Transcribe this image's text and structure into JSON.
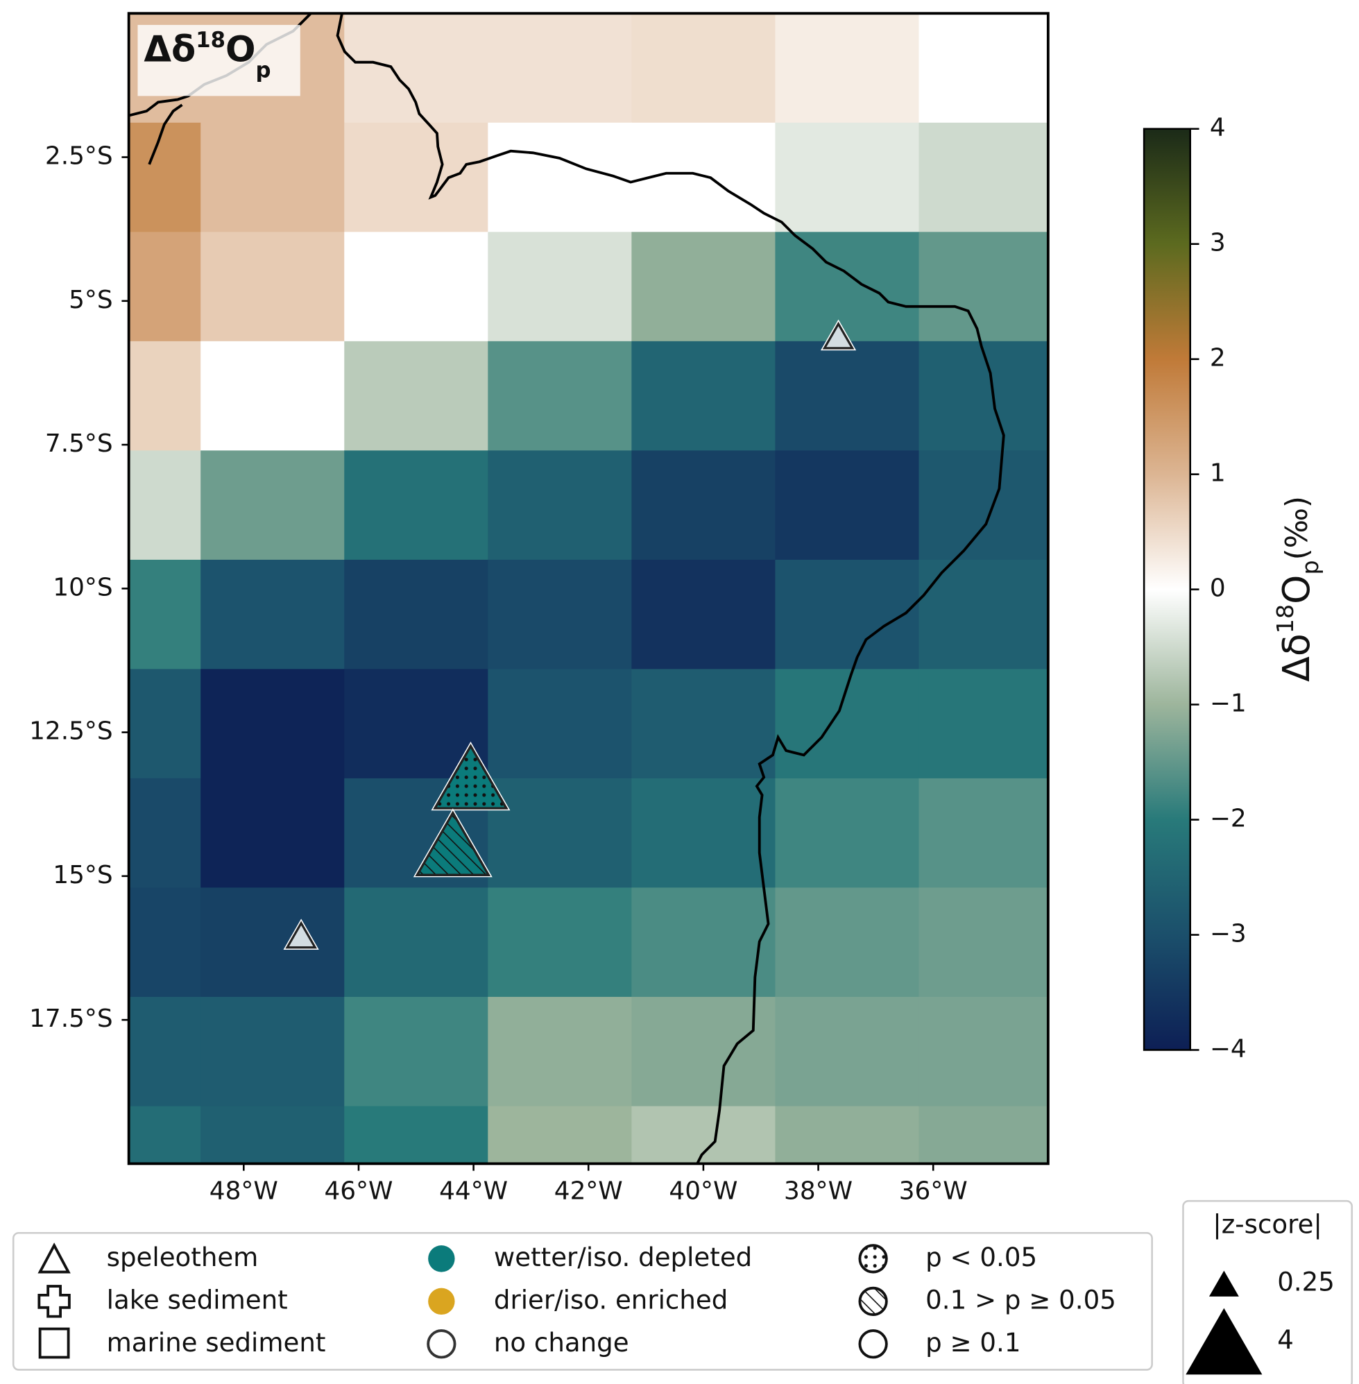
{
  "chart_data": {
    "type": "heatmap",
    "title": {
      "base": "Δδ",
      "sup": "18",
      "mid": "O",
      "sub": "p"
    },
    "xlim": [
      -50,
      -34
    ],
    "ylim": [
      -20,
      0
    ],
    "xticks": [
      {
        "value": -48,
        "label": "48°W"
      },
      {
        "value": -46,
        "label": "46°W"
      },
      {
        "value": -44,
        "label": "44°W"
      },
      {
        "value": -42,
        "label": "42°W"
      },
      {
        "value": -40,
        "label": "40°W"
      },
      {
        "value": -38,
        "label": "38°W"
      },
      {
        "value": -36,
        "label": "36°W"
      }
    ],
    "yticks": [
      {
        "value": -2.5,
        "label": "2.5°S"
      },
      {
        "value": -5,
        "label": "5°S"
      },
      {
        "value": -7.5,
        "label": "7.5°S"
      },
      {
        "value": -10,
        "label": "10°S"
      },
      {
        "value": -12.5,
        "label": "12.5°S"
      },
      {
        "value": -15,
        "label": "15°S"
      },
      {
        "value": -17.5,
        "label": "17.5°S"
      }
    ],
    "lon_edges": [
      -50,
      -48.75,
      -46.25,
      -43.75,
      -41.25,
      -38.75,
      -36.25,
      -34
    ],
    "lat_edges": [
      0,
      -1.9,
      -3.8,
      -5.7,
      -7.6,
      -9.5,
      -11.4,
      -13.3,
      -15.2,
      -17.1,
      -19.0,
      -20
    ],
    "values": [
      [
        0.9,
        0.9,
        0.4,
        0.4,
        0.45,
        0.25,
        0
      ],
      [
        1.6,
        0.9,
        0.5,
        0,
        0,
        -0.3,
        -0.5
      ],
      [
        1.3,
        0.7,
        0,
        -0.4,
        -1.1,
        -1.8,
        -1.5
      ],
      [
        0.6,
        0,
        -0.7,
        -1.6,
        -2.5,
        -3.1,
        -2.6
      ],
      [
        -0.5,
        -1.4,
        -2.2,
        -2.6,
        -3.3,
        -3.5,
        -2.8
      ],
      [
        -1.9,
        -2.9,
        -3.3,
        -3.1,
        -3.6,
        -2.9,
        -2.6
      ],
      [
        -2.8,
        -3.9,
        -3.7,
        -2.9,
        -2.7,
        -2.1,
        -2.1
      ],
      [
        -3.1,
        -3.9,
        -3.0,
        -2.6,
        -2.3,
        -1.8,
        -1.6
      ],
      [
        -3.2,
        -3.3,
        -2.4,
        -1.9,
        -1.7,
        -1.5,
        -1.4
      ],
      [
        -2.7,
        -2.7,
        -1.8,
        -1.1,
        -1.2,
        -1.3,
        -1.3
      ],
      [
        -2.3,
        -2.6,
        -2.0,
        -1.0,
        -0.8,
        -1.1,
        -1.2
      ]
    ],
    "clim": [
      -4,
      4
    ],
    "colormap": [
      "#0d1f55",
      "#1b4f6b",
      "#287a7a",
      "#9db59c",
      "#ffffff",
      "#dcb593",
      "#c07a38",
      "#5c6a1f",
      "#1b2a18"
    ],
    "colorbar_label": {
      "base": "Δδ",
      "sup": "18",
      "mid": "O",
      "sub": "p",
      "unit": "(‰)"
    },
    "colorbar_ticks": [
      {
        "value": -4,
        "label": "−4"
      },
      {
        "value": -3,
        "label": "−3"
      },
      {
        "value": -2,
        "label": "−2"
      },
      {
        "value": -1,
        "label": "−1"
      },
      0,
      1,
      2,
      3,
      4
    ],
    "sites": [
      {
        "lon": -37.65,
        "lat": -5.61,
        "zscore": 0.1,
        "color": "#d3dde2",
        "pattern": "none"
      },
      {
        "lon": -47.0,
        "lat": -16.03,
        "zscore": 0.1,
        "color": "#d3dde2",
        "pattern": "none"
      },
      {
        "lon": -44.05,
        "lat": -13.28,
        "zscore": 3.6,
        "color": "#0b7b7b",
        "pattern": "dots"
      },
      {
        "lon": -44.36,
        "lat": -14.44,
        "zscore": 3.6,
        "color": "#0b7b7b",
        "pattern": "hatch"
      }
    ],
    "legend": {
      "archive": [
        "speleothem",
        "lake sediment",
        "marine sediment"
      ],
      "change": [
        "wetter/iso. depleted",
        "drier/iso. enriched",
        "no change"
      ],
      "significance": [
        "p < 0.05",
        "0.1 > p ≥ 0.05",
        "p ≥ 0.1"
      ],
      "change_colors": [
        "#0b7b7b",
        "#daa520",
        "#ffffff"
      ]
    },
    "size_legend": {
      "title": "|z-score|",
      "values": [
        0.25,
        4
      ]
    }
  }
}
